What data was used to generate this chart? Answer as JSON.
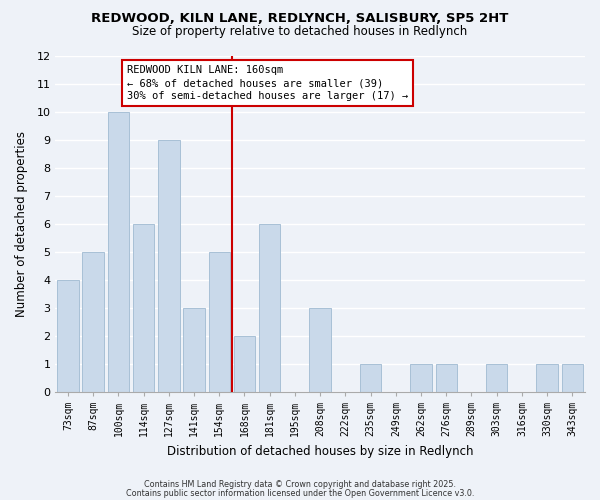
{
  "title": "REDWOOD, KILN LANE, REDLYNCH, SALISBURY, SP5 2HT",
  "subtitle": "Size of property relative to detached houses in Redlynch",
  "xlabel": "Distribution of detached houses by size in Redlynch",
  "ylabel": "Number of detached properties",
  "bar_labels": [
    "73sqm",
    "87sqm",
    "100sqm",
    "114sqm",
    "127sqm",
    "141sqm",
    "154sqm",
    "168sqm",
    "181sqm",
    "195sqm",
    "208sqm",
    "222sqm",
    "235sqm",
    "249sqm",
    "262sqm",
    "276sqm",
    "289sqm",
    "303sqm",
    "316sqm",
    "330sqm",
    "343sqm"
  ],
  "bar_values": [
    4,
    5,
    10,
    6,
    9,
    3,
    5,
    2,
    6,
    0,
    3,
    0,
    1,
    0,
    1,
    1,
    0,
    1,
    0,
    1,
    1
  ],
  "bar_color": "#c9d9ea",
  "bar_edgecolor": "#a8c0d6",
  "marker_line_color": "#cc0000",
  "annotation_line1": "REDWOOD KILN LANE: 160sqm",
  "annotation_line2": "← 68% of detached houses are smaller (39)",
  "annotation_line3": "30% of semi-detached houses are larger (17) →",
  "annotation_box_facecolor": "#ffffff",
  "annotation_box_edgecolor": "#cc0000",
  "ylim": [
    0,
    12
  ],
  "yticks": [
    0,
    1,
    2,
    3,
    4,
    5,
    6,
    7,
    8,
    9,
    10,
    11,
    12
  ],
  "background_color": "#eef2f8",
  "plot_bg_color": "#eef2f8",
  "grid_color": "#ffffff",
  "footer_line1": "Contains HM Land Registry data © Crown copyright and database right 2025.",
  "footer_line2": "Contains public sector information licensed under the Open Government Licence v3.0."
}
